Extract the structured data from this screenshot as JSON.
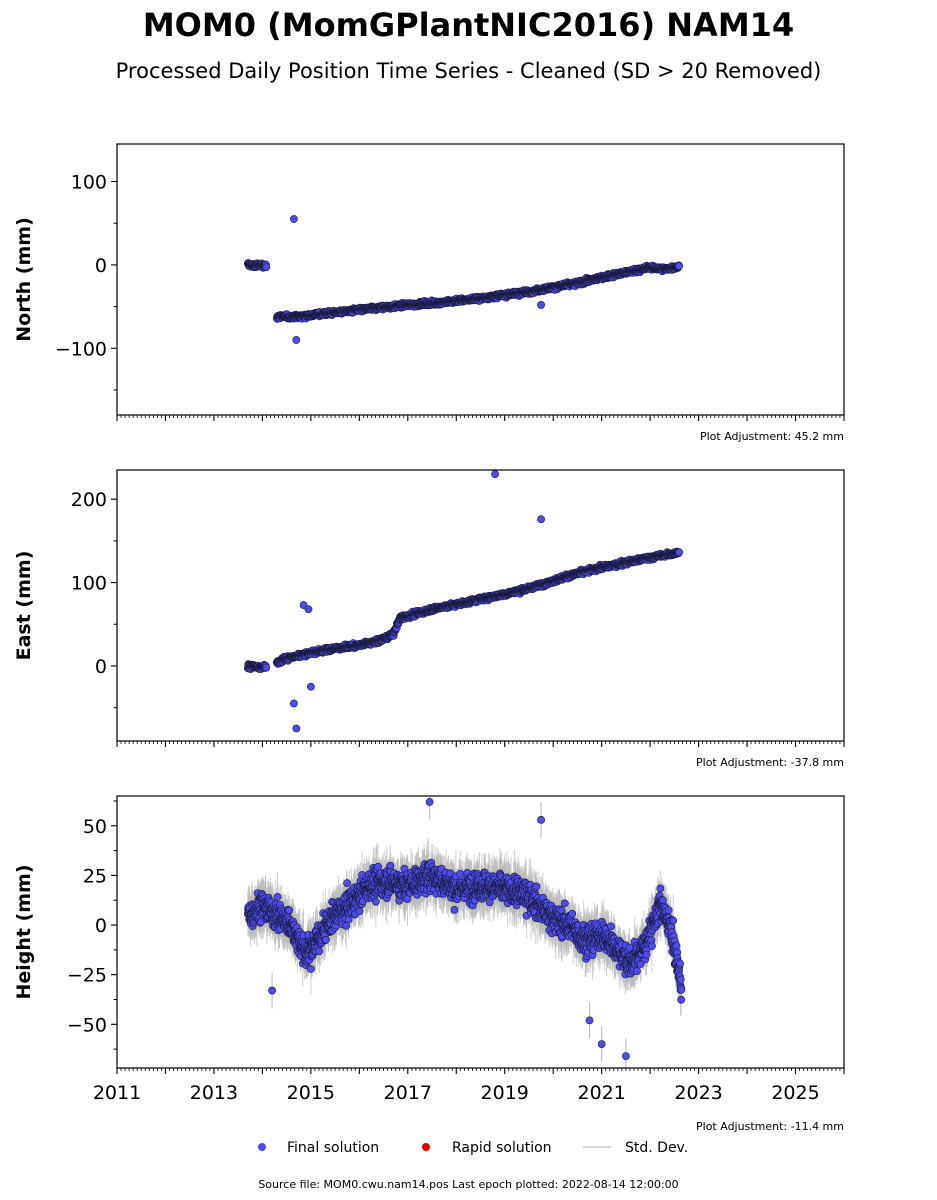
{
  "figure": {
    "title": "MOM0 (MomGPlantNIC2016) NAM14",
    "subtitle": "Processed Daily Position Time Series - Cleaned (SD > 20 Removed)",
    "source_note": "Source file: MOM0.cwu.nam14.pos  Last epoch plotted: 2022-08-14 12:00:00",
    "colors": {
      "final": "#4c4cf0",
      "final_edge": "#1a1a3a",
      "rapid": "#e00000",
      "stddev": "#b8b8b8"
    },
    "legend": [
      {
        "label": "Final solution",
        "marker": "circle",
        "color": "#4c4cf0"
      },
      {
        "label": "Rapid solution",
        "marker": "circle",
        "color": "#e00000"
      },
      {
        "label": "Std. Dev.",
        "marker": "line",
        "color": "#c8c8c8"
      }
    ]
  },
  "chart_data": [
    {
      "type": "scatter",
      "panel": "north",
      "ylabel": "North (mm)",
      "adjustment": "Plot Adjustment: 45.2 mm",
      "xlim": [
        2011,
        2026
      ],
      "ylim": [
        -180,
        145
      ],
      "yticks": [
        -100,
        0,
        100
      ],
      "ytick_labels": [
        "−100",
        "0",
        "100"
      ],
      "series": [
        {
          "x": [
            2013.7,
            2013.85,
            2014.0,
            2014.2,
            2014.3,
            2014.5,
            2014.7,
            2015.0,
            2015.5,
            2016.0,
            2016.5,
            2017.0,
            2017.5,
            2018.0,
            2018.5,
            2019.0,
            2019.5,
            2020.0,
            2020.5,
            2021.0,
            2021.5,
            2022.0,
            2022.3,
            2022.6
          ],
          "y": [
            0,
            -1,
            0,
            -4,
            -62,
            -62,
            -62,
            -60,
            -57,
            -54,
            -51,
            -48,
            -46,
            -43,
            -40,
            -36,
            -32,
            -27,
            -22,
            -15,
            -9,
            -3,
            -5,
            -2
          ],
          "outliers": [
            [
              2014.65,
              55
            ],
            [
              2014.7,
              -90
            ],
            [
              2019.75,
              -48
            ]
          ]
        }
      ]
    },
    {
      "type": "scatter",
      "panel": "east",
      "ylabel": "East (mm)",
      "adjustment": "Plot Adjustment: -37.8 mm",
      "xlim": [
        2011,
        2026
      ],
      "ylim": [
        -90,
        235
      ],
      "yticks": [
        0,
        100,
        200
      ],
      "ytick_labels": [
        "0",
        "100",
        "200"
      ],
      "series": [
        {
          "x": [
            2013.7,
            2014.0,
            2014.2,
            2014.5,
            2015.0,
            2015.5,
            2016.0,
            2016.4,
            2016.7,
            2016.85,
            2017.0,
            2017.5,
            2018.0,
            2018.5,
            2019.0,
            2019.5,
            2020.0,
            2020.5,
            2021.0,
            2021.5,
            2022.0,
            2022.6
          ],
          "y": [
            0,
            -2,
            2,
            9,
            16,
            21,
            25,
            30,
            38,
            58,
            60,
            68,
            74,
            80,
            86,
            93,
            102,
            111,
            118,
            124,
            130,
            136
          ],
          "outliers": [
            [
              2014.65,
              -45
            ],
            [
              2014.7,
              -75
            ],
            [
              2014.85,
              73
            ],
            [
              2014.95,
              68
            ],
            [
              2015.0,
              -25
            ],
            [
              2018.8,
              230
            ],
            [
              2019.75,
              176
            ]
          ]
        }
      ]
    },
    {
      "type": "scatter",
      "panel": "height",
      "ylabel": "Height (mm)",
      "adjustment": "Plot Adjustment: -11.4 mm",
      "xlim": [
        2011,
        2026
      ],
      "ylim": [
        -72,
        65
      ],
      "yticks": [
        -50,
        -25,
        0,
        25,
        50
      ],
      "ytick_labels": [
        "−50",
        "−25",
        "0",
        "25",
        "50"
      ],
      "xticks": [
        2011,
        2013,
        2015,
        2017,
        2019,
        2021,
        2023,
        2025
      ],
      "xtick_labels": [
        "2011",
        "2013",
        "2015",
        "2017",
        "2019",
        "2021",
        "2023",
        "2025"
      ],
      "series": [
        {
          "x": [
            2013.7,
            2014.0,
            2014.3,
            2014.6,
            2014.9,
            2015.2,
            2015.5,
            2015.8,
            2016.2,
            2016.6,
            2017.0,
            2017.5,
            2018.0,
            2018.5,
            2019.0,
            2019.5,
            2019.9,
            2020.3,
            2020.7,
            2021.0,
            2021.3,
            2021.6,
            2021.9,
            2022.2,
            2022.4,
            2022.65
          ],
          "y": [
            5,
            10,
            5,
            0,
            -15,
            -5,
            5,
            10,
            20,
            22,
            20,
            25,
            18,
            20,
            18,
            15,
            5,
            0,
            -8,
            -5,
            -12,
            -20,
            -10,
            10,
            0,
            -30
          ],
          "outliers": [
            [
              2014.2,
              -33
            ],
            [
              2017.45,
              62
            ],
            [
              2019.75,
              53
            ],
            [
              2021.0,
              -60
            ],
            [
              2021.5,
              -66
            ],
            [
              2020.75,
              -48
            ]
          ]
        }
      ]
    }
  ]
}
